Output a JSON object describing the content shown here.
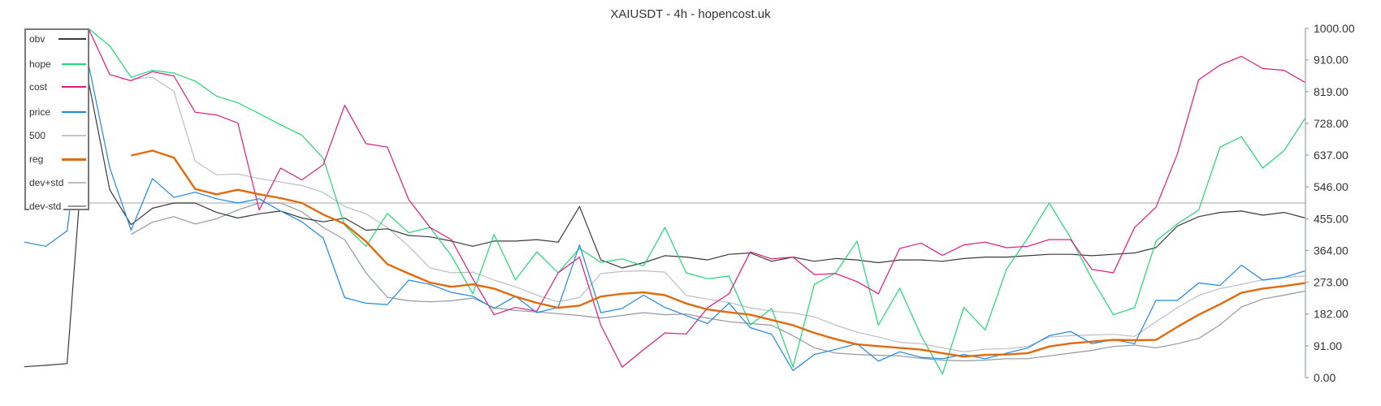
{
  "chart_data": {
    "type": "line",
    "title": "XAIUSDT - 4h - hopencost.uk",
    "xlabel": "",
    "ylabel": "",
    "ylim": [
      0,
      1000
    ],
    "yticks": [
      "0.00",
      "91.00",
      "182.00",
      "273.00",
      "364.00",
      "455.00",
      "546.00",
      "637.00",
      "728.00",
      "819.00",
      "910.00",
      "1000.00"
    ],
    "grid": false,
    "legend_position": "top-left",
    "hline": {
      "name": "500",
      "value": 500,
      "color": "#c4c4c4"
    },
    "series": [
      {
        "name": "obv",
        "color": "#3a3a3a",
        "width": 1.2,
        "values": [
          31,
          35,
          40,
          850,
          538,
          438,
          485,
          500,
          500,
          473,
          457,
          469,
          477,
          457,
          446,
          457,
          422,
          426,
          407,
          403,
          391,
          376,
          391,
          391,
          395,
          388,
          490,
          337,
          314,
          329,
          349,
          345,
          337,
          353,
          357,
          333,
          345,
          333,
          341,
          337,
          329,
          337,
          337,
          333,
          341,
          345,
          345,
          349,
          353,
          353,
          349,
          353,
          357,
          372,
          434,
          461,
          473,
          477,
          465,
          473,
          457
        ]
      },
      {
        "name": "hope",
        "color": "#1ed873",
        "width": 1.2,
        "values": [
          null,
          null,
          null,
          1000,
          950,
          860,
          880,
          872,
          849,
          806,
          787,
          756,
          724,
          694,
          628,
          436,
          376,
          470,
          415,
          430,
          349,
          240,
          410,
          280,
          360,
          300,
          370,
          330,
          340,
          320,
          430,
          300,
          283,
          291,
          151,
          198,
          30,
          267,
          300,
          391,
          150,
          256,
          120,
          10,
          201,
          136,
          310,
          400,
          500,
          400,
          283,
          180,
          200,
          391,
          440,
          480,
          660,
          690,
          600,
          650,
          744
        ]
      },
      {
        "name": "cost",
        "color": "#e0197d",
        "width": 1.2,
        "values": [
          null,
          null,
          null,
          1000,
          868,
          850,
          876,
          864,
          760,
          752,
          729,
          480,
          600,
          566,
          610,
          780,
          670,
          660,
          510,
          430,
          395,
          283,
          180,
          201,
          190,
          300,
          345,
          150,
          30,
          80,
          128,
          125,
          200,
          240,
          360,
          340,
          345,
          295,
          298,
          275,
          240,
          370,
          385,
          350,
          380,
          388,
          372,
          376,
          395,
          395,
          310,
          300,
          430,
          488,
          640,
          853,
          895,
          920,
          885,
          880,
          845
        ]
      },
      {
        "name": "price",
        "color": "#1e88e5",
        "width": 1.2,
        "values": [
          388,
          376,
          420,
          900,
          601,
          422,
          570,
          516,
          531,
          512,
          500,
          512,
          477,
          446,
          399,
          229,
          213,
          209,
          279,
          267,
          244,
          233,
          198,
          233,
          186,
          201,
          380,
          186,
          198,
          236,
          201,
          178,
          155,
          213,
          143,
          124,
          20,
          66,
          81,
          97,
          47,
          74,
          58,
          54,
          66,
          54,
          70,
          85,
          120,
          132,
          97,
          109,
          97,
          221,
          221,
          271,
          264,
          322,
          279,
          287,
          306
        ]
      },
      {
        "name": "reg",
        "color": "#e06a0c",
        "width": 2.4,
        "values": [
          null,
          null,
          null,
          null,
          null,
          636,
          650,
          630,
          540,
          525,
          538,
          525,
          514,
          500,
          467,
          440,
          390,
          325,
          298,
          272,
          260,
          267,
          255,
          232,
          214,
          200,
          206,
          232,
          240,
          244,
          236,
          212,
          195,
          187,
          180,
          165,
          150,
          128,
          110,
          95,
          90,
          85,
          80,
          70,
          60,
          65,
          66,
          70,
          89,
          98,
          103,
          108,
          107,
          108,
          145,
          180,
          210,
          243,
          255,
          262,
          271
        ]
      },
      {
        "name": "dev+std",
        "color": "#b9bec3",
        "width": 1.2,
        "values": [
          null,
          null,
          null,
          null,
          null,
          855,
          860,
          820,
          620,
          581,
          583,
          570,
          560,
          550,
          530,
          490,
          469,
          430,
          376,
          314,
          300,
          302,
          279,
          260,
          236,
          217,
          229,
          298,
          304,
          306,
          302,
          235,
          225,
          215,
          200,
          190,
          185,
          174,
          150,
          130,
          116,
          101,
          97,
          85,
          74,
          81,
          83,
          89,
          116,
          120,
          122,
          124,
          118,
          160,
          200,
          235,
          255,
          267,
          280,
          287,
          291
        ]
      },
      {
        "name": "dev-std",
        "color": "#8f9aa4",
        "width": 1.2,
        "values": [
          null,
          null,
          null,
          null,
          null,
          410,
          445,
          461,
          440,
          455,
          480,
          500,
          500,
          475,
          430,
          395,
          300,
          230,
          220,
          217,
          220,
          228,
          200,
          192,
          188,
          183,
          178,
          170,
          178,
          186,
          180,
          182,
          170,
          160,
          155,
          150,
          120,
          85,
          70,
          66,
          64,
          62,
          55,
          50,
          48,
          50,
          54,
          54,
          62,
          70,
          78,
          89,
          93,
          85,
          97,
          112,
          151,
          202,
          225,
          236,
          248
        ]
      }
    ],
    "legend_order": [
      "obv",
      "hope",
      "cost",
      "price",
      "500",
      "reg",
      "dev+std",
      "dev-std"
    ]
  }
}
